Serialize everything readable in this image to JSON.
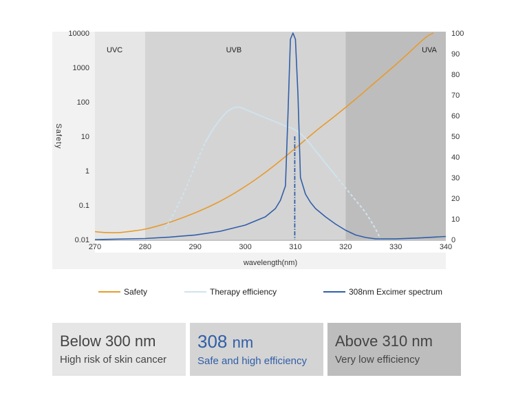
{
  "chart_data": {
    "type": "line",
    "title": "",
    "xlabel": "wavelength(nm)",
    "ylabel_left": "Safety",
    "ylabel_right": "",
    "xlim": [
      270,
      340
    ],
    "x_ticks": [
      "270",
      "280",
      "290",
      "300",
      "310",
      "320",
      "330",
      "340"
    ],
    "y_left_scale": "log",
    "y_left_ticks": [
      "10000",
      "1000",
      "100",
      "10",
      "1",
      "0.1",
      "0.01"
    ],
    "y_right_ticks": [
      "100",
      "90",
      "80",
      "70",
      "60",
      "50",
      "40",
      "30",
      "20",
      "10",
      "0"
    ],
    "bands": [
      {
        "label": "UVC",
        "from": 270,
        "to": 280,
        "color": "#e6e6e6"
      },
      {
        "label": "UVB",
        "from": 280,
        "to": 320,
        "color": "#d4d4d4"
      },
      {
        "label": "UVA",
        "from": 320,
        "to": 340,
        "color": "#bdbdbd"
      }
    ],
    "legend_placement": "bottom",
    "series": [
      {
        "name": "Safety",
        "axis": "left",
        "color": "#e79a2b",
        "style": "solid",
        "x": [
          270,
          272,
          275,
          278,
          280,
          283,
          286,
          290,
          294,
          298,
          302,
          306,
          310,
          314,
          318,
          322,
          326,
          330,
          333,
          336,
          337.5
        ],
        "y": [
          0.017,
          0.016,
          0.016,
          0.018,
          0.02,
          0.026,
          0.036,
          0.06,
          0.11,
          0.23,
          0.55,
          1.5,
          4.5,
          14,
          40,
          120,
          380,
          1200,
          3000,
          7500,
          10000
        ]
      },
      {
        "name": "Therapy efficiency",
        "axis": "right",
        "color": "#cfe3ee",
        "style": "dashed-solid",
        "x": [
          284,
          286,
          288,
          290,
          292,
          294,
          296,
          297,
          298,
          299,
          300,
          302,
          304,
          306,
          308,
          310,
          312,
          314,
          316,
          318,
          320,
          322,
          324,
          326,
          327
        ],
        "y": [
          5,
          14,
          24,
          36,
          47,
          55,
          61,
          63,
          64,
          64,
          63,
          61,
          59,
          57,
          55,
          53,
          49,
          43,
          37,
          31,
          25,
          19,
          13,
          5,
          0
        ]
      },
      {
        "name": "308nm Excimer spectrum",
        "axis": "right",
        "color": "#2f5ea8",
        "style": "solid",
        "x": [
          270,
          280,
          285,
          290,
          295,
          300,
          304,
          306,
          307,
          308,
          308.5,
          309,
          309.5,
          310,
          310.5,
          311,
          312,
          313,
          314,
          316,
          318,
          320,
          322,
          324,
          326,
          330,
          335,
          340
        ],
        "y": [
          0,
          0.5,
          1.2,
          2.2,
          4,
          7,
          11,
          15,
          19,
          26,
          60,
          97,
          100,
          97,
          70,
          30,
          22,
          18,
          15,
          11,
          7.5,
          4.5,
          2.2,
          1,
          0.3,
          0.3,
          0.8,
          1.5
        ]
      }
    ],
    "annotations": [
      {
        "type": "dash-dot-vline",
        "x": 310,
        "y_from_log": 0.01,
        "y_to_log": 10,
        "color": "#2f5ea8"
      }
    ]
  },
  "legend": [
    {
      "label": "Safety",
      "color": "#e79a2b"
    },
    {
      "label": "Therapy efficiency",
      "color": "#cfe3ee"
    },
    {
      "label": "308nm Excimer spectrum",
      "color": "#2f5ea8"
    }
  ],
  "cards": [
    {
      "heading_value": "Below 300",
      "heading_unit": "nm",
      "subtitle": "High risk of skin cancer"
    },
    {
      "heading_value": "308",
      "heading_unit": "nm",
      "subtitle": "Safe and high efficiency"
    },
    {
      "heading_value": "Above 310",
      "heading_unit": "nm",
      "subtitle": "Very low efficiency"
    }
  ]
}
